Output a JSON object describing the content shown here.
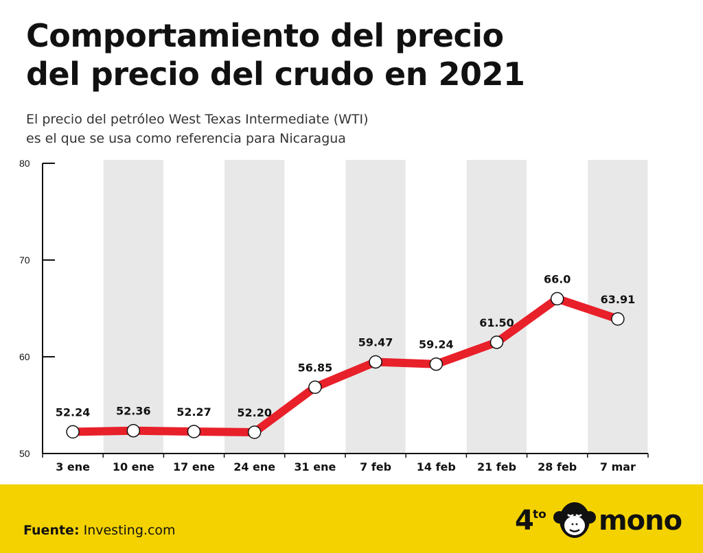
{
  "header": {
    "title_line1": "Comportamiento del precio",
    "title_line2": "del precio del crudo en 2021",
    "subtitle_line1": "El precio del petróleo West Texas Intermediate (WTI)",
    "subtitle_line2": "es el que se usa como referencia para Nicaragua"
  },
  "footer": {
    "source_label": "Fuente:",
    "source_value": "Investing.com",
    "logo_number": "4",
    "logo_small": "to",
    "logo_word": "mono"
  },
  "colors": {
    "line": "#e8202a",
    "band": "#e8e8e8",
    "footer": "#f4d200",
    "text": "#111111"
  },
  "chart_data": {
    "type": "line",
    "title": "",
    "xlabel": "",
    "ylabel": "",
    "categories": [
      "3 ene",
      "10 ene",
      "17 ene",
      "24 ene",
      "31 ene",
      "7 feb",
      "14 feb",
      "21 feb",
      "28 feb",
      "7 mar"
    ],
    "series": [
      {
        "values": [
          52.24,
          52.36,
          52.27,
          52.2,
          56.85,
          59.47,
          59.24,
          61.5,
          66.0,
          63.91
        ],
        "labels": [
          "52.24",
          "52.36",
          "52.27",
          "52.20",
          "56.85",
          "59.47",
          "59.24",
          "61.50",
          "66.0",
          "63.91"
        ]
      }
    ],
    "ylim": [
      50,
      80
    ],
    "yticks": [
      50,
      60,
      70,
      80
    ],
    "grid": false,
    "legend": "none",
    "alternating_bands": true
  }
}
